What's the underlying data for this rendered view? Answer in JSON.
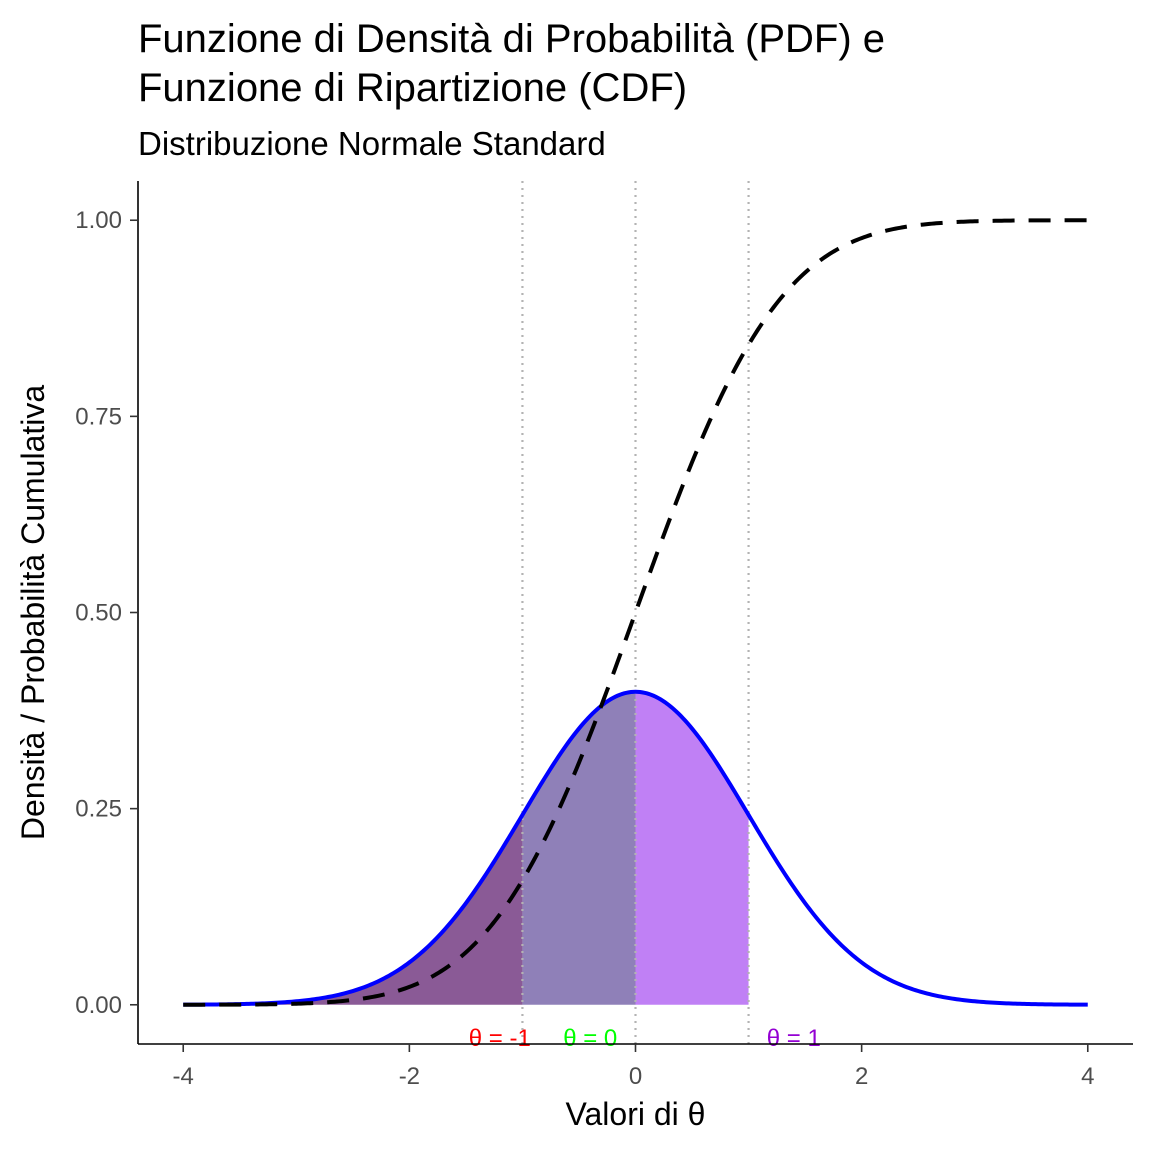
{
  "chart_data": {
    "type": "line",
    "title_line1": "Funzione di Densità di Probabilità (PDF) e",
    "title_line2": "Funzione di Ripartizione (CDF)",
    "subtitle": "Distribuzione Normale Standard",
    "xlabel": "Valori di θ",
    "ylabel": "Densità / Probabilità Cumulativa",
    "xlim": [
      -4.4,
      4.4
    ],
    "ylim": [
      -0.05,
      1.05
    ],
    "x_ticks": [
      -4,
      -2,
      0,
      2,
      4
    ],
    "x_tick_labels": [
      "-4",
      "-2",
      "0",
      "2",
      "4"
    ],
    "y_ticks": [
      0,
      0.25,
      0.5,
      0.75,
      1.0
    ],
    "y_tick_labels": [
      "0.00",
      "0.25",
      "0.50",
      "0.75",
      "1.00"
    ],
    "grid": false,
    "series": [
      {
        "key": "pdf",
        "style": "solid",
        "color": "#0000ff",
        "x": [
          -4,
          -3.5,
          -3,
          -2.5,
          -2,
          -1.5,
          -1,
          -0.5,
          0,
          0.5,
          1,
          1.5,
          2,
          2.5,
          3,
          3.5,
          4
        ],
        "y": [
          0.0001,
          0.0009,
          0.0044,
          0.0175,
          0.054,
          0.1295,
          0.242,
          0.3521,
          0.3989,
          0.3521,
          0.242,
          0.1295,
          0.054,
          0.0175,
          0.0044,
          0.0009,
          0.0001
        ]
      },
      {
        "key": "cdf",
        "style": "dashed",
        "color": "#000000",
        "x": [
          -4,
          -3.5,
          -3,
          -2.5,
          -2,
          -1.5,
          -1,
          -0.5,
          0,
          0.5,
          1,
          1.5,
          2,
          2.5,
          3,
          3.5,
          4
        ],
        "y": [
          0.0,
          0.0002,
          0.0013,
          0.0062,
          0.0228,
          0.0668,
          0.1587,
          0.3085,
          0.5,
          0.6915,
          0.8413,
          0.9332,
          0.9772,
          0.9938,
          0.9987,
          0.9998,
          1.0
        ]
      }
    ],
    "shaded_regions": [
      {
        "from": -4,
        "to": -1,
        "color": "#8a5a96"
      },
      {
        "from": -1,
        "to": 0,
        "color": "#8f80b8"
      },
      {
        "from": 0,
        "to": 1,
        "color": "#c080f5"
      }
    ],
    "reference_lines": [
      {
        "x": -1,
        "color": "#b3b3b3",
        "style": "dotted"
      },
      {
        "x": 0,
        "color": "#b3b3b3",
        "style": "dotted"
      },
      {
        "x": 1,
        "color": "#b3b3b3",
        "style": "dotted"
      }
    ],
    "annotations": [
      {
        "text": "θ = -1",
        "x": -1.2,
        "color": "#ff0000"
      },
      {
        "text": "θ = 0",
        "x": -0.4,
        "color": "#00ff00"
      },
      {
        "text": "θ = 1",
        "x": 1.4,
        "color": "#9400d3"
      }
    ]
  }
}
